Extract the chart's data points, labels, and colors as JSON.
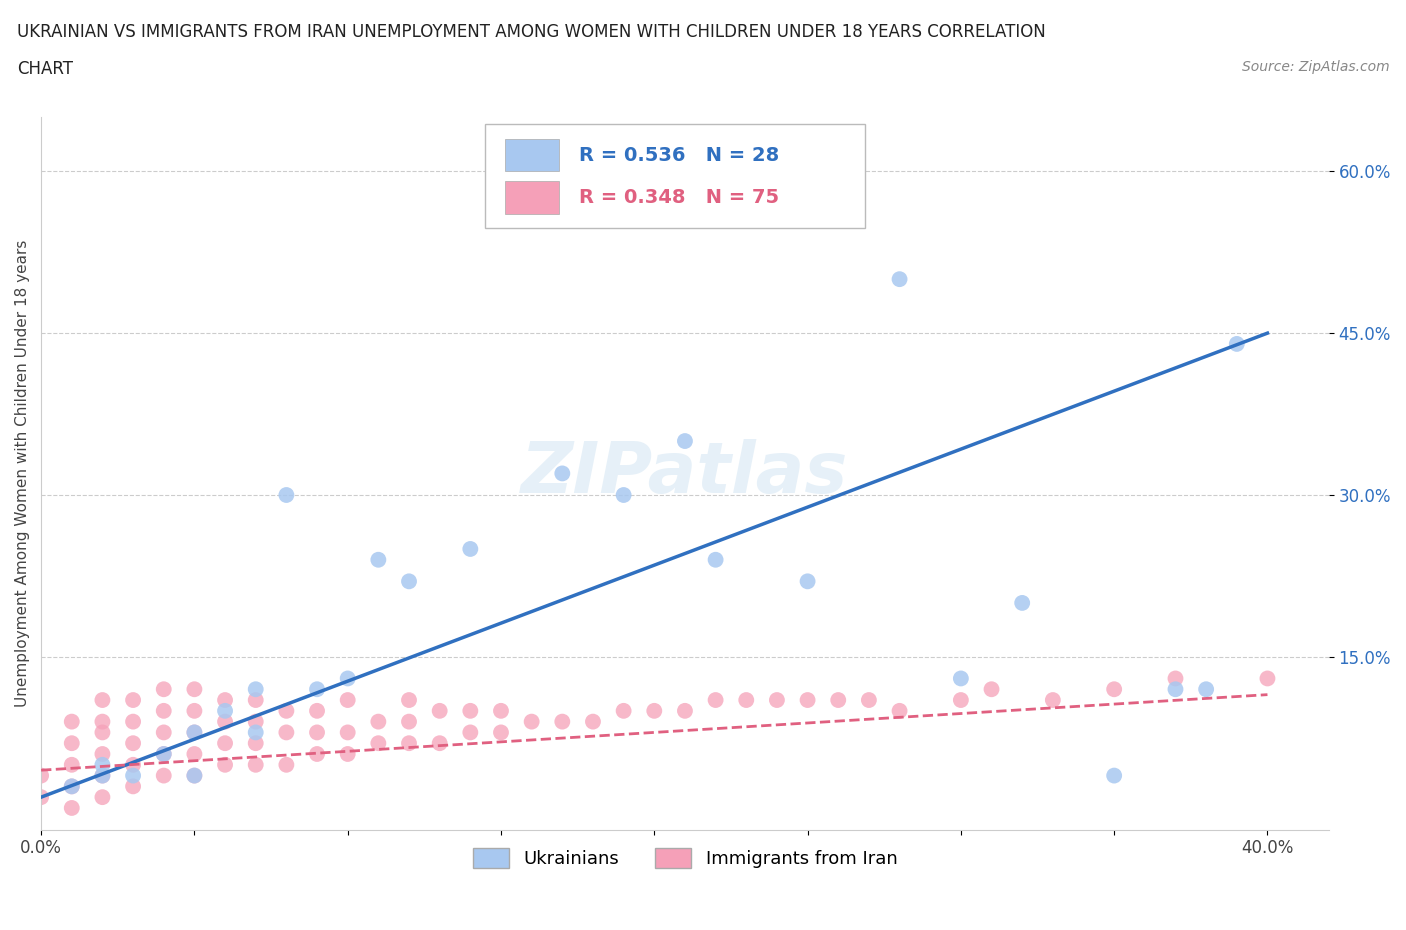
{
  "title_line1": "UKRAINIAN VS IMMIGRANTS FROM IRAN UNEMPLOYMENT AMONG WOMEN WITH CHILDREN UNDER 18 YEARS CORRELATION",
  "title_line2": "CHART",
  "source": "Source: ZipAtlas.com",
  "ylabel": "Unemployment Among Women with Children Under 18 years",
  "xlim": [
    0.0,
    0.42
  ],
  "ylim": [
    -0.01,
    0.65
  ],
  "xticks": [
    0.0,
    0.05,
    0.1,
    0.15,
    0.2,
    0.25,
    0.3,
    0.35,
    0.4
  ],
  "xtick_labels": [
    "0.0%",
    "",
    "",
    "",
    "",
    "",
    "",
    "",
    "40.0%"
  ],
  "ytick_positions": [
    0.15,
    0.3,
    0.45,
    0.6
  ],
  "ytick_labels": [
    "15.0%",
    "30.0%",
    "45.0%",
    "60.0%"
  ],
  "ukrainian_R": 0.536,
  "ukrainian_N": 28,
  "iran_R": 0.348,
  "iran_N": 75,
  "ukrainian_color": "#a8c8f0",
  "ukrainian_line_color": "#3070c0",
  "iran_color": "#f5a0b8",
  "iran_line_color": "#e06080",
  "legend_label_ukrainian": "Ukrainians",
  "legend_label_iran": "Immigrants from Iran",
  "background_color": "#ffffff",
  "watermark": "ZIPatlas",
  "uk_trend_x": [
    0.0,
    0.4
  ],
  "uk_trend_y": [
    0.02,
    0.45
  ],
  "ir_trend_x": [
    0.0,
    0.4
  ],
  "ir_trend_y": [
    0.045,
    0.115
  ],
  "ukrainian_x": [
    0.01,
    0.02,
    0.02,
    0.03,
    0.04,
    0.05,
    0.05,
    0.06,
    0.07,
    0.07,
    0.08,
    0.09,
    0.1,
    0.11,
    0.12,
    0.14,
    0.17,
    0.19,
    0.21,
    0.22,
    0.25,
    0.28,
    0.3,
    0.32,
    0.35,
    0.37,
    0.38,
    0.39
  ],
  "ukrainian_y": [
    0.03,
    0.04,
    0.05,
    0.04,
    0.06,
    0.04,
    0.08,
    0.1,
    0.08,
    0.12,
    0.3,
    0.12,
    0.13,
    0.24,
    0.22,
    0.25,
    0.32,
    0.3,
    0.35,
    0.24,
    0.22,
    0.5,
    0.13,
    0.2,
    0.04,
    0.12,
    0.12,
    0.44
  ],
  "iran_x": [
    0.0,
    0.0,
    0.01,
    0.01,
    0.01,
    0.01,
    0.01,
    0.02,
    0.02,
    0.02,
    0.02,
    0.02,
    0.02,
    0.03,
    0.03,
    0.03,
    0.03,
    0.03,
    0.04,
    0.04,
    0.04,
    0.04,
    0.04,
    0.05,
    0.05,
    0.05,
    0.05,
    0.05,
    0.06,
    0.06,
    0.06,
    0.06,
    0.07,
    0.07,
    0.07,
    0.07,
    0.08,
    0.08,
    0.08,
    0.09,
    0.09,
    0.09,
    0.1,
    0.1,
    0.1,
    0.11,
    0.11,
    0.12,
    0.12,
    0.12,
    0.13,
    0.13,
    0.14,
    0.14,
    0.15,
    0.15,
    0.16,
    0.17,
    0.18,
    0.19,
    0.2,
    0.21,
    0.22,
    0.23,
    0.24,
    0.25,
    0.26,
    0.27,
    0.28,
    0.3,
    0.31,
    0.33,
    0.35,
    0.37,
    0.4
  ],
  "iran_y": [
    0.02,
    0.04,
    0.01,
    0.03,
    0.05,
    0.07,
    0.09,
    0.02,
    0.04,
    0.06,
    0.08,
    0.09,
    0.11,
    0.03,
    0.05,
    0.07,
    0.09,
    0.11,
    0.04,
    0.06,
    0.08,
    0.1,
    0.12,
    0.04,
    0.06,
    0.08,
    0.1,
    0.12,
    0.05,
    0.07,
    0.09,
    0.11,
    0.05,
    0.07,
    0.09,
    0.11,
    0.05,
    0.08,
    0.1,
    0.06,
    0.08,
    0.1,
    0.06,
    0.08,
    0.11,
    0.07,
    0.09,
    0.07,
    0.09,
    0.11,
    0.07,
    0.1,
    0.08,
    0.1,
    0.08,
    0.1,
    0.09,
    0.09,
    0.09,
    0.1,
    0.1,
    0.1,
    0.11,
    0.11,
    0.11,
    0.11,
    0.11,
    0.11,
    0.1,
    0.11,
    0.12,
    0.11,
    0.12,
    0.13,
    0.13
  ]
}
